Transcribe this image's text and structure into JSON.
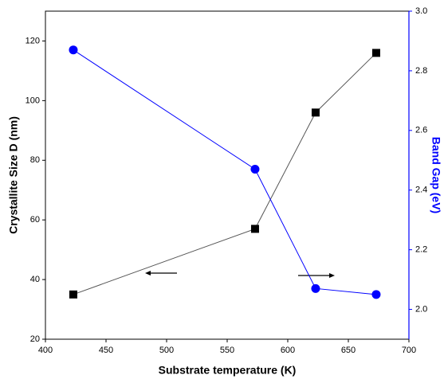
{
  "chart_data": {
    "type": "line",
    "x_label": "Substrate temperature (K)",
    "y_label": "Crystallite Size D (nm)",
    "y2_label": "Band Gap (eV)",
    "x": [
      423,
      573,
      623,
      673
    ],
    "series": [
      {
        "name": "Crystallite Size D",
        "color": "#000000",
        "marker": "square",
        "values": [
          35,
          57,
          96,
          116
        ]
      },
      {
        "name": "Band Gap",
        "color": "#0000ff",
        "marker": "circle",
        "axis": "y2",
        "values": [
          2.87,
          2.47,
          2.07,
          2.05
        ]
      }
    ],
    "xlim": [
      400,
      700
    ],
    "xticks": [
      400,
      450,
      500,
      550,
      600,
      650,
      700
    ],
    "ylim": [
      20,
      130
    ],
    "yticks": [
      20,
      40,
      60,
      80,
      100,
      120
    ],
    "y2lim": [
      1.9,
      3.0
    ],
    "y2ticks": [
      {
        "value": 2.0,
        "label": "2.0"
      },
      2.2,
      2.4,
      2.6,
      2.8,
      {
        "value": 3.0,
        "label": "3.0"
      }
    ]
  }
}
